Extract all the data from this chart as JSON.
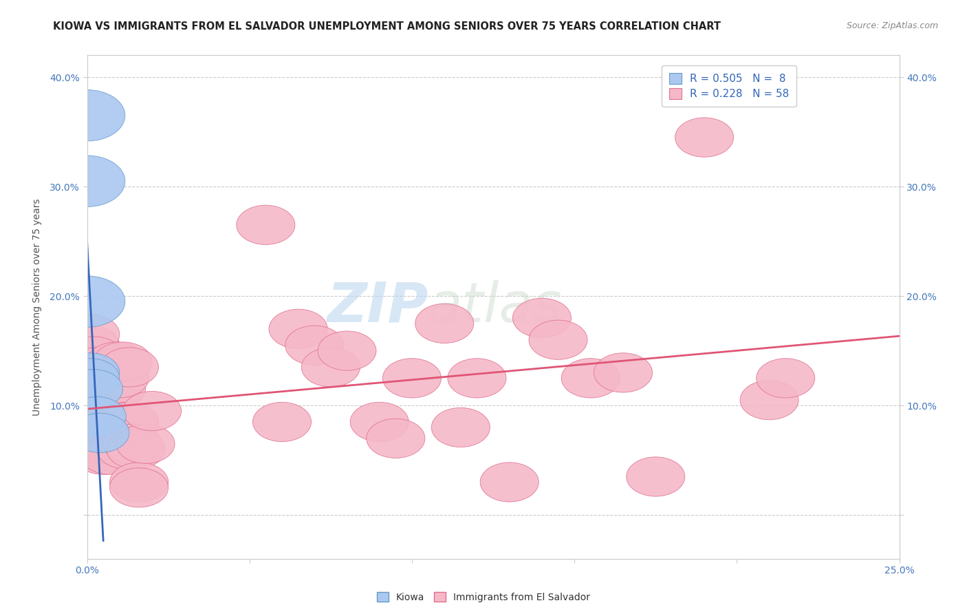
{
  "title": "KIOWA VS IMMIGRANTS FROM EL SALVADOR UNEMPLOYMENT AMONG SENIORS OVER 75 YEARS CORRELATION CHART",
  "source": "Source: ZipAtlas.com",
  "ylabel": "Unemployment Among Seniors over 75 years",
  "xlim": [
    0.0,
    0.25
  ],
  "ylim": [
    -0.04,
    0.42
  ],
  "x_ticks": [
    0.0,
    0.05,
    0.1,
    0.15,
    0.2,
    0.25
  ],
  "y_ticks": [
    0.0,
    0.1,
    0.2,
    0.3,
    0.4
  ],
  "kiowa_color": "#aac8f0",
  "kiowa_edge_color": "#6699cc",
  "salvador_color": "#f5b8c8",
  "salvador_edge_color": "#e07090",
  "kiowa_line_color": "#3366bb",
  "salvador_line_color": "#e05575",
  "watermark_zip": "ZIP",
  "watermark_atlas": "atlas",
  "background_color": "#ffffff",
  "grid_color": "#cccccc",
  "kiowa_scatter_x": [
    0.0,
    0.0,
    0.0,
    0.001,
    0.001,
    0.002,
    0.003,
    0.004
  ],
  "kiowa_scatter_y": [
    0.365,
    0.305,
    0.195,
    0.13,
    0.125,
    0.115,
    0.09,
    0.075
  ],
  "salvador_scatter_x": [
    0.0,
    0.0,
    0.0,
    0.001,
    0.001,
    0.002,
    0.002,
    0.003,
    0.003,
    0.004,
    0.004,
    0.004,
    0.005,
    0.005,
    0.005,
    0.006,
    0.006,
    0.007,
    0.007,
    0.007,
    0.008,
    0.009,
    0.009,
    0.01,
    0.01,
    0.011,
    0.011,
    0.012,
    0.012,
    0.013,
    0.013,
    0.014,
    0.015,
    0.016,
    0.016,
    0.018,
    0.02,
    0.055,
    0.06,
    0.065,
    0.07,
    0.075,
    0.08,
    0.09,
    0.095,
    0.1,
    0.11,
    0.115,
    0.12,
    0.13,
    0.14,
    0.145,
    0.155,
    0.165,
    0.175,
    0.19,
    0.21,
    0.215
  ],
  "salvador_scatter_y": [
    0.085,
    0.075,
    0.065,
    0.155,
    0.165,
    0.145,
    0.105,
    0.135,
    0.125,
    0.115,
    0.08,
    0.07,
    0.085,
    0.055,
    0.075,
    0.065,
    0.1,
    0.125,
    0.12,
    0.055,
    0.08,
    0.14,
    0.115,
    0.135,
    0.125,
    0.08,
    0.14,
    0.085,
    0.06,
    0.135,
    0.085,
    0.065,
    0.06,
    0.03,
    0.025,
    0.065,
    0.095,
    0.265,
    0.085,
    0.17,
    0.155,
    0.135,
    0.15,
    0.085,
    0.07,
    0.125,
    0.175,
    0.08,
    0.125,
    0.03,
    0.18,
    0.16,
    0.125,
    0.13,
    0.035,
    0.345,
    0.105,
    0.125
  ]
}
